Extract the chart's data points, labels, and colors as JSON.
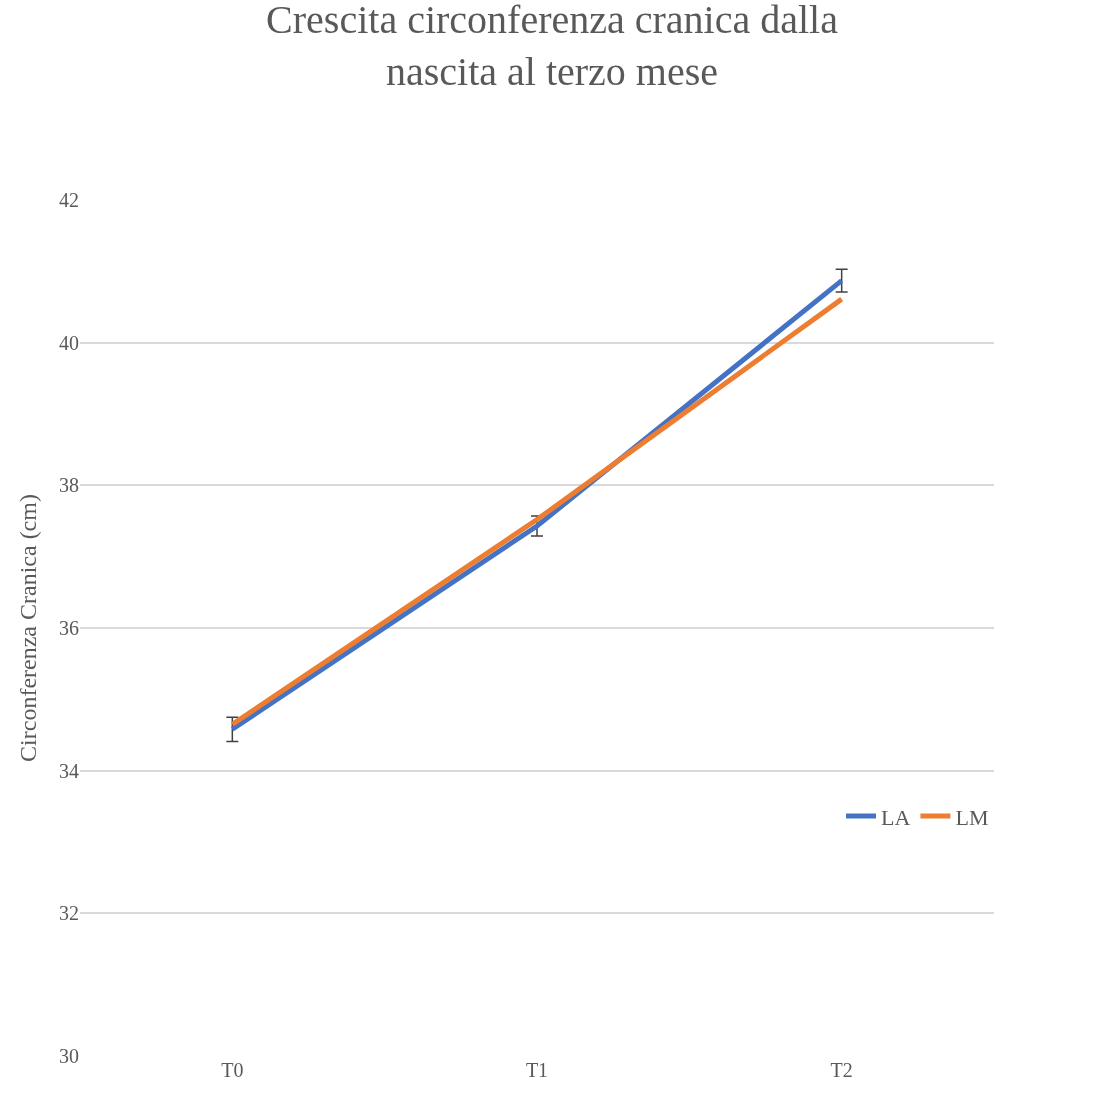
{
  "chart_data": {
    "type": "line",
    "title": "Crescita circonferenza cranica dalla\nnascita al terzo mese",
    "ylabel": "Circonferenza Cranica (cm)",
    "categories": [
      "T0",
      "T1",
      "T2"
    ],
    "series": [
      {
        "name": "LA",
        "color": "#4472c4",
        "values": [
          34.58,
          37.43,
          40.87
        ],
        "errors": [
          0.17,
          0.14,
          0.16
        ]
      },
      {
        "name": "LM",
        "color": "#ed7d31",
        "values": [
          34.65,
          37.52,
          40.61
        ]
      }
    ],
    "ylim": [
      30,
      42
    ],
    "yticks": [
      30,
      32,
      34,
      36,
      38,
      40,
      42
    ],
    "grid": "y",
    "legend": "right",
    "marker": "none",
    "line_style": "solid"
  }
}
